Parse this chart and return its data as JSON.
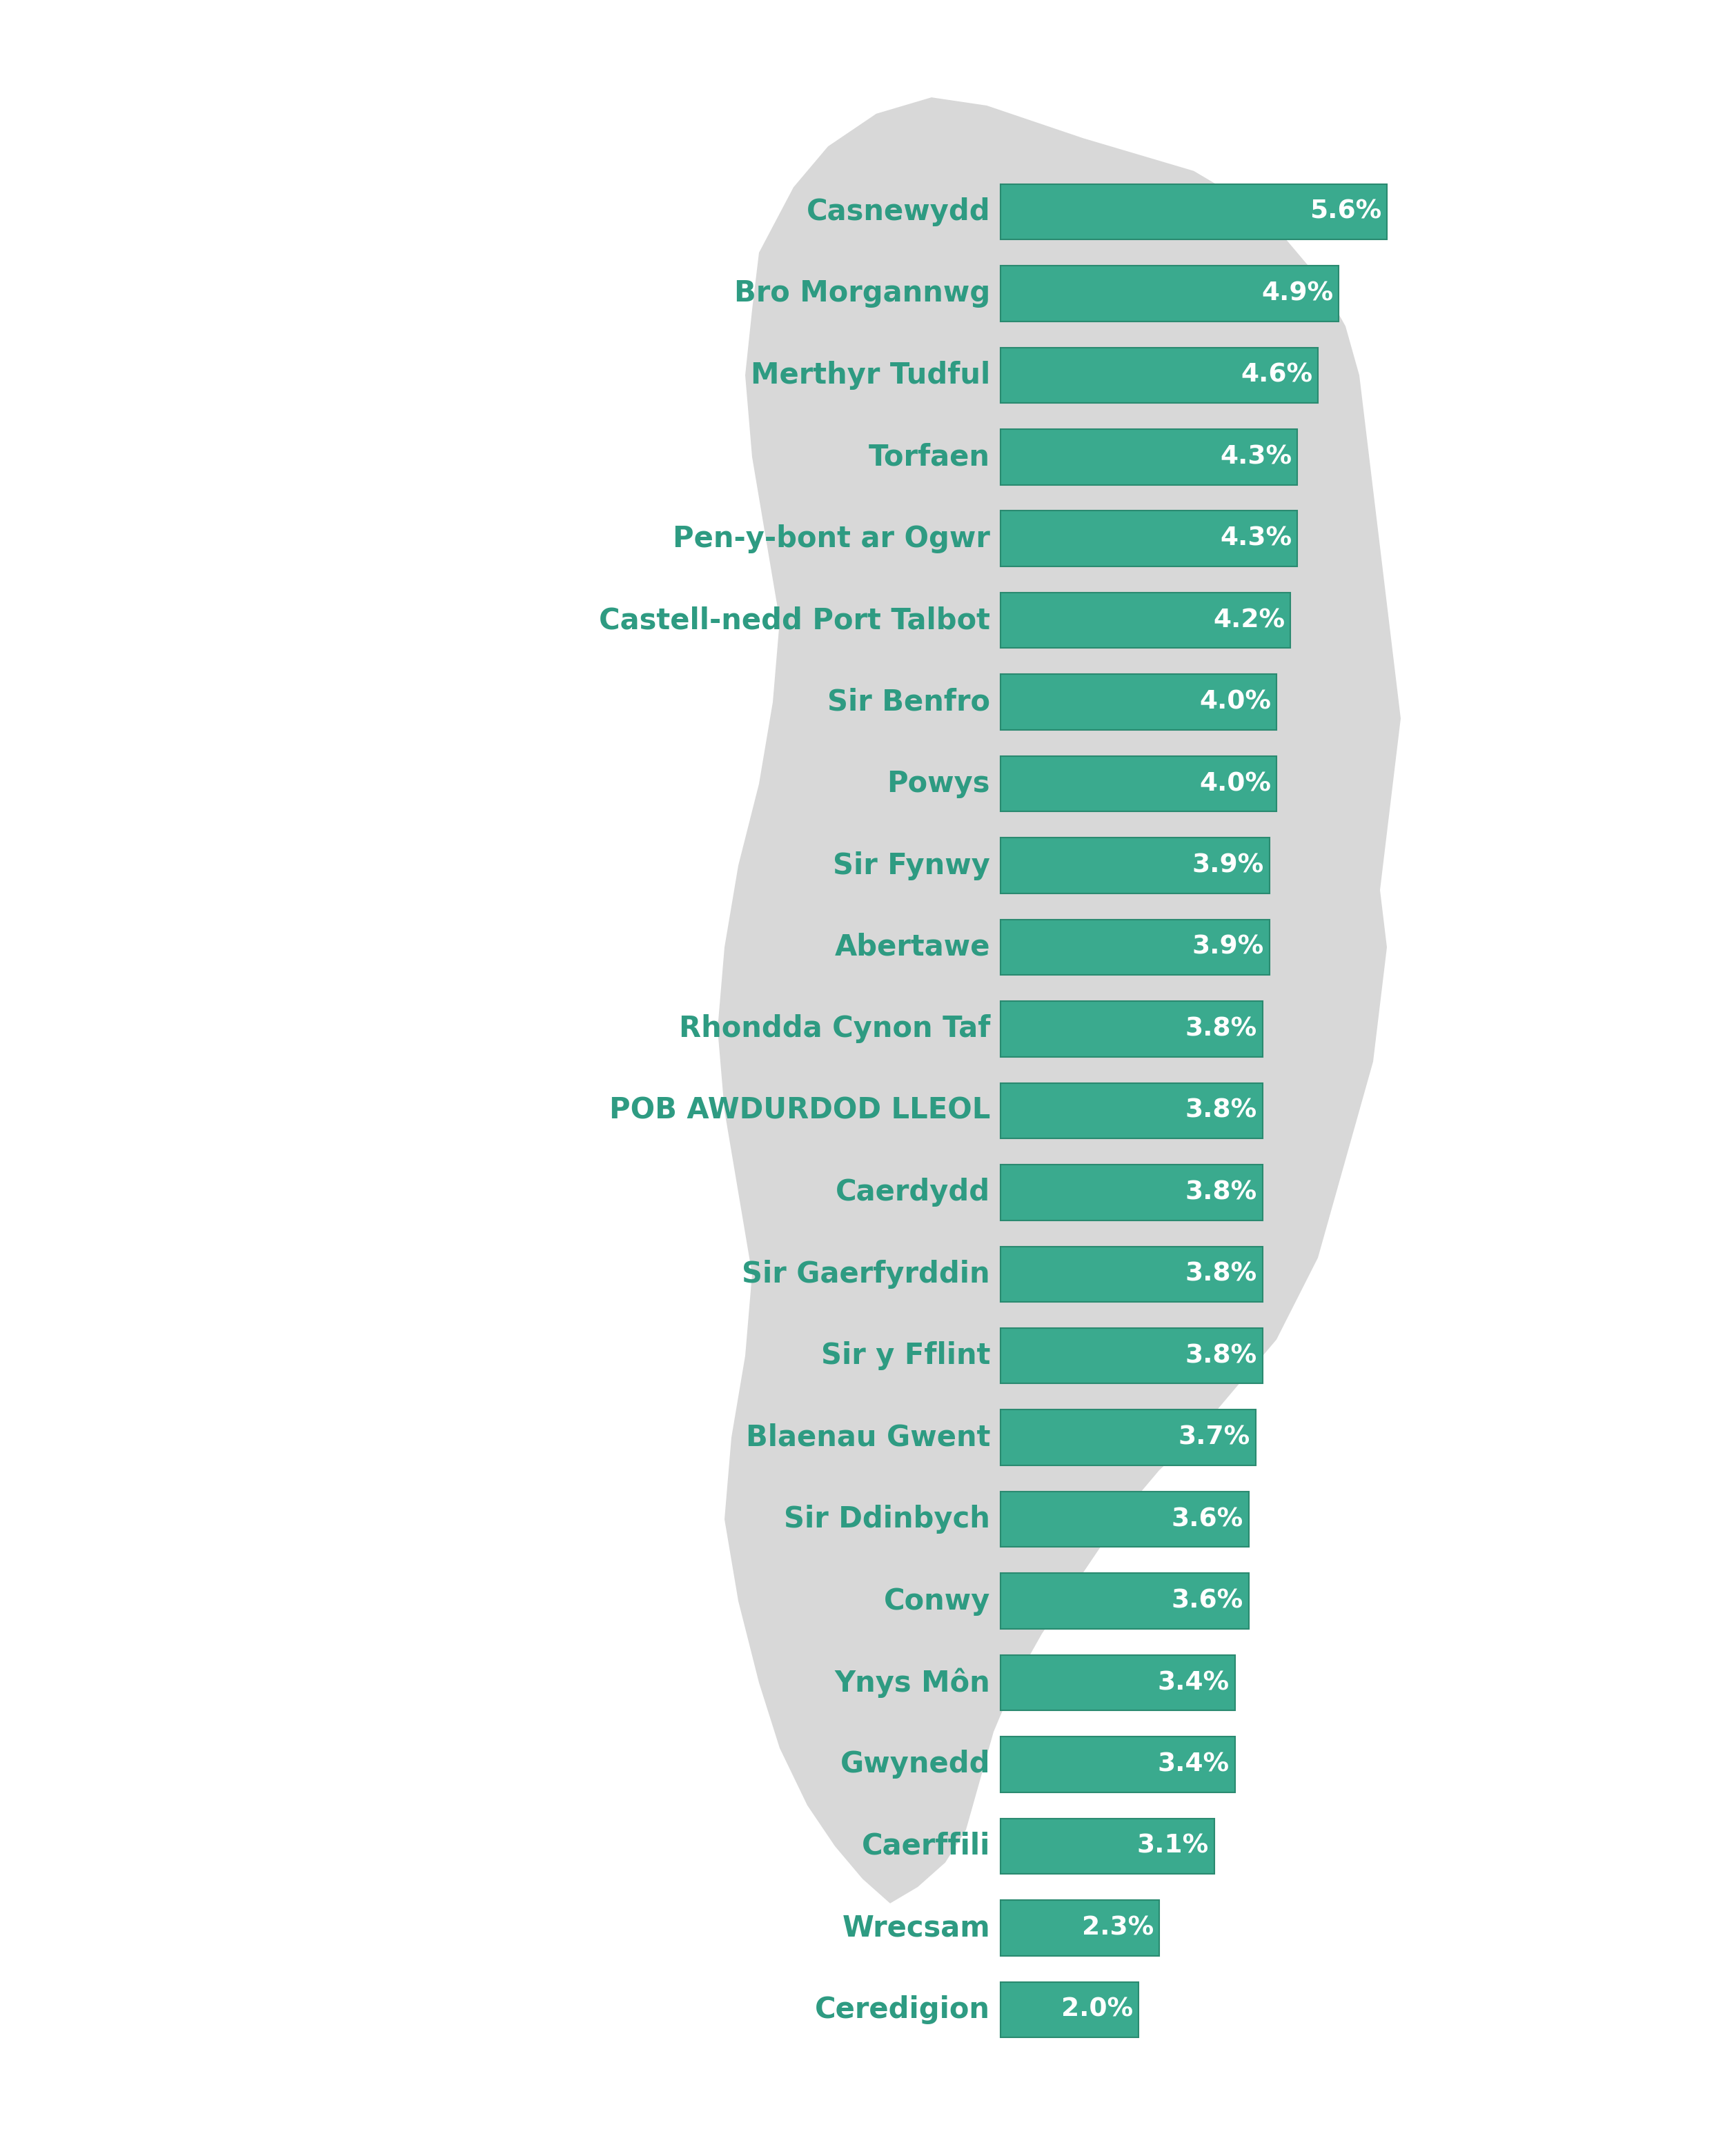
{
  "categories": [
    "Casnewydd",
    "Bro Morgannwg",
    "Merthyr Tudful",
    "Torfaen",
    "Pen-y-bont ar Ogwr",
    "Castell-nedd Port Talbot",
    "Sir Benfro",
    "Powys",
    "Sir Fynwy",
    "Abertawe",
    "Rhondda Cynon Taf",
    "POB AWDURDOD LLEOL",
    "Caerdydd",
    "Sir Gaerfyrddin",
    "Sir y Fflint",
    "Blaenau Gwent",
    "Sir Ddinbych",
    "Conwy",
    "Ynys Môn",
    "Gwynedd",
    "Caerffili",
    "Wrecsam",
    "Ceredigion"
  ],
  "values": [
    5.6,
    4.9,
    4.6,
    4.3,
    4.3,
    4.2,
    4.0,
    4.0,
    3.9,
    3.9,
    3.8,
    3.8,
    3.8,
    3.8,
    3.8,
    3.7,
    3.6,
    3.6,
    3.4,
    3.4,
    3.1,
    2.3,
    2.0
  ],
  "bar_color": "#3aaa8e",
  "bar_edge_color": "#2a8a70",
  "label_color": "#2e9b82",
  "value_label_color": "#ffffff",
  "background_color": "#ffffff",
  "map_color": "#d8d8d8",
  "bar_height": 0.68,
  "label_fontsize": 30,
  "value_fontsize": 27,
  "fig_width": 25.0,
  "fig_height": 31.25
}
